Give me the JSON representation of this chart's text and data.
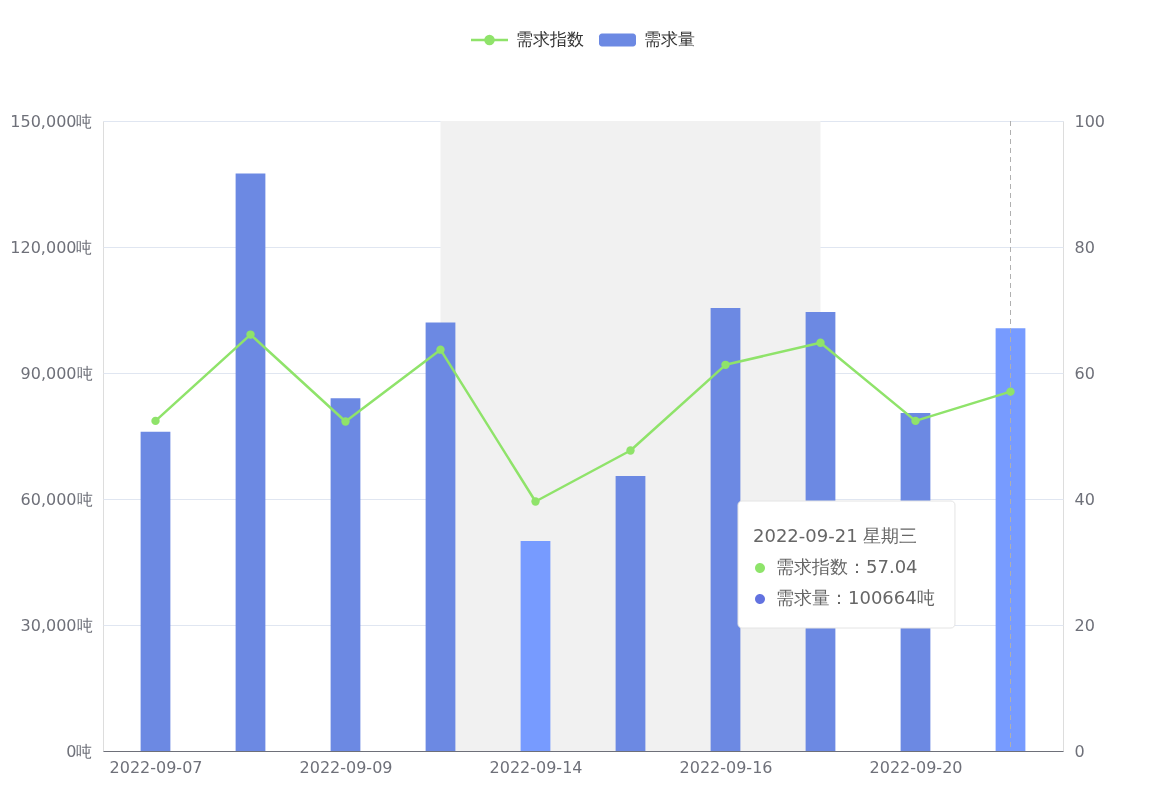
{
  "chart_data": {
    "type": "bar",
    "categories": [
      "2022-09-07",
      null,
      "2022-09-09",
      null,
      "2022-09-14",
      null,
      "2022-09-16",
      null,
      "2022-09-20",
      null
    ],
    "series": [
      {
        "name": "需求指数",
        "type": "line",
        "axis": "y2",
        "color": "#8fe36a",
        "values": [
          52.4,
          66.1,
          52.3,
          63.7,
          39.6,
          47.7,
          61.3,
          64.8,
          52.4,
          57.04
        ]
      },
      {
        "name": "需求量",
        "color": "#6c89e3",
        "colors": [
          "#6c89e3",
          "#6c89e3",
          "#6c89e3",
          "#6c89e3",
          "#779bff",
          "#6c89e3",
          "#6c89e3",
          "#6c89e3",
          "#6c89e3",
          "#779bff"
        ],
        "values": [
          76000,
          137500,
          84000,
          102000,
          50000,
          65500,
          105500,
          104500,
          80500,
          100664
        ]
      }
    ],
    "ylim": [
      0,
      150000
    ],
    "yticks": [
      {
        "value": 0,
        "label": "0吨"
      },
      {
        "value": 30000,
        "label": "30,000吨"
      },
      {
        "value": 60000,
        "label": "60,000吨"
      },
      {
        "value": 90000,
        "label": "90,000吨"
      },
      {
        "value": 120000,
        "label": "120,000吨"
      },
      {
        "value": 150000,
        "label": "150,000吨"
      }
    ],
    "y2lim": [
      0,
      100
    ],
    "y2ticks": [
      0,
      20,
      40,
      60,
      80,
      100
    ],
    "grid": "y",
    "legend": "top",
    "marker": "circle",
    "annotations": [
      "2022-09-21 星期三",
      "需求指数：57.04",
      "需求量：100664吨"
    ]
  }
}
